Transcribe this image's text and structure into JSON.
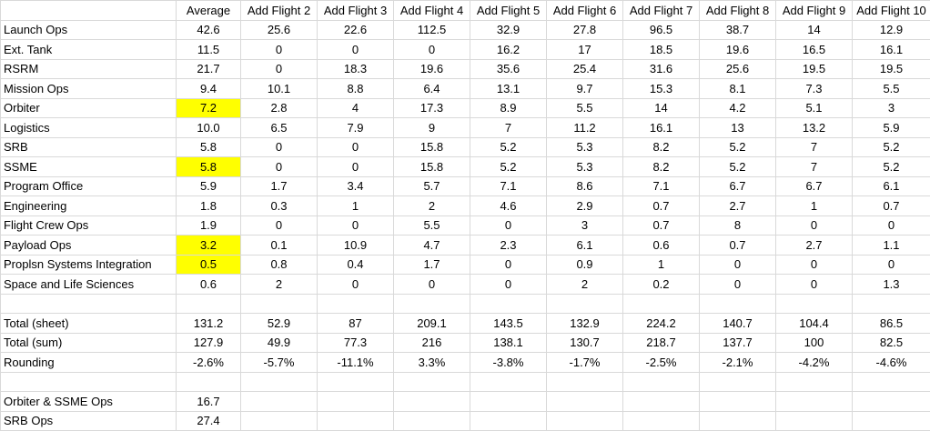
{
  "table": {
    "header": [
      "Average",
      "Add Flight 2",
      "Add Flight 3",
      "Add Flight 4",
      "Add Flight 5",
      "Add Flight 6",
      "Add Flight 7",
      "Add Flight 8",
      "Add Flight 9",
      "Add Flight 10"
    ],
    "rows": [
      [
        "Launch Ops",
        "42.6",
        "25.6",
        "22.6",
        "112.5",
        "32.9",
        "27.8",
        "96.5",
        "38.7",
        "14",
        "12.9"
      ],
      [
        "Ext. Tank",
        "11.5",
        "0",
        "0",
        "0",
        "16.2",
        "17",
        "18.5",
        "19.6",
        "16.5",
        "16.1"
      ],
      [
        "RSRM",
        "21.7",
        "0",
        "18.3",
        "19.6",
        "35.6",
        "25.4",
        "31.6",
        "25.6",
        "19.5",
        "19.5"
      ],
      [
        "Mission Ops",
        "9.4",
        "10.1",
        "8.8",
        "6.4",
        "13.1",
        "9.7",
        "15.3",
        "8.1",
        "7.3",
        "5.5"
      ],
      [
        "Orbiter",
        "7.2",
        "2.8",
        "4",
        "17.3",
        "8.9",
        "5.5",
        "14",
        "4.2",
        "5.1",
        "3"
      ],
      [
        "Logistics",
        "10.0",
        "6.5",
        "7.9",
        "9",
        "7",
        "11.2",
        "16.1",
        "13",
        "13.2",
        "5.9"
      ],
      [
        "SRB",
        "5.8",
        "0",
        "0",
        "15.8",
        "5.2",
        "5.3",
        "8.2",
        "5.2",
        "7",
        "5.2"
      ],
      [
        "SSME",
        "5.8",
        "0",
        "0",
        "15.8",
        "5.2",
        "5.3",
        "8.2",
        "5.2",
        "7",
        "5.2"
      ],
      [
        "Program Office",
        "5.9",
        "1.7",
        "3.4",
        "5.7",
        "7.1",
        "8.6",
        "7.1",
        "6.7",
        "6.7",
        "6.1"
      ],
      [
        "Engineering",
        "1.8",
        "0.3",
        "1",
        "2",
        "4.6",
        "2.9",
        "0.7",
        "2.7",
        "1",
        "0.7"
      ],
      [
        "Flight Crew Ops",
        "1.9",
        "0",
        "0",
        "5.5",
        "0",
        "3",
        "0.7",
        "8",
        "0",
        "0"
      ],
      [
        "Payload Ops",
        "3.2",
        "0.1",
        "10.9",
        "4.7",
        "2.3",
        "6.1",
        "0.6",
        "0.7",
        "2.7",
        "1.1"
      ],
      [
        "Proplsn Systems Integration",
        "0.5",
        "0.8",
        "0.4",
        "1.7",
        "0",
        "0.9",
        "1",
        "0",
        "0",
        "0"
      ],
      [
        "Space and Life Sciences",
        "0.6",
        "2",
        "0",
        "0",
        "0",
        "2",
        "0.2",
        "0",
        "0",
        "1.3"
      ]
    ],
    "totals": [
      [
        "Total (sheet)",
        "131.2",
        "52.9",
        "87",
        "209.1",
        "143.5",
        "132.9",
        "224.2",
        "140.7",
        "104.4",
        "86.5"
      ],
      [
        "Total (sum)",
        "127.9",
        "49.9",
        "77.3",
        "216",
        "138.1",
        "130.7",
        "218.7",
        "137.7",
        "100",
        "82.5"
      ],
      [
        "Rounding",
        "-2.6%",
        "-5.7%",
        "-11.1%",
        "3.3%",
        "-3.8%",
        "-1.7%",
        "-2.5%",
        "-2.1%",
        "-4.2%",
        "-4.6%"
      ]
    ],
    "summary": [
      [
        "Orbiter & SSME Ops",
        "16.7"
      ],
      [
        "SRB Ops",
        "27.4"
      ]
    ]
  }
}
